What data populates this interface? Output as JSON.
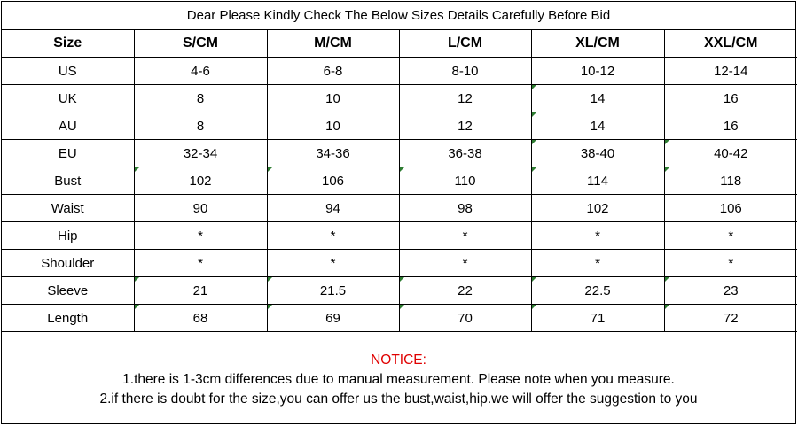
{
  "banner": "Dear Please Kindly Check The Below Sizes Details Carefully Before Bid",
  "table": {
    "headers": [
      "Size",
      "S/CM",
      "M/CM",
      "L/CM",
      "XL/CM",
      "XXL/CM"
    ],
    "rows": [
      [
        "US",
        "4-6",
        "6-8",
        "8-10",
        "10-12",
        "12-14"
      ],
      [
        "UK",
        "8",
        "10",
        "12",
        "14",
        "16"
      ],
      [
        "AU",
        "8",
        "10",
        "12",
        "14",
        "16"
      ],
      [
        "EU",
        "32-34",
        "34-36",
        "36-38",
        "38-40",
        "40-42"
      ],
      [
        "Bust",
        "102",
        "106",
        "110",
        "114",
        "118"
      ],
      [
        "Waist",
        "90",
        "94",
        "98",
        "102",
        "106"
      ],
      [
        "Hip",
        "*",
        "*",
        "*",
        "*",
        "*"
      ],
      [
        "Shoulder",
        "*",
        "*",
        "*",
        "*",
        "*"
      ],
      [
        "Sleeve",
        "21",
        "21.5",
        "22",
        "22.5",
        "23"
      ],
      [
        "Length",
        "68",
        "69",
        "70",
        "71",
        "72"
      ]
    ]
  },
  "notice": {
    "title": "NOTICE:",
    "line1": "1.there is 1-3cm differences due to manual measurement. Please note when you measure.",
    "line2": "2.if there is doubt for the size,you can offer us the bust,waist,hip.we will offer the suggestion to you"
  },
  "colors": {
    "notice_title": "#e00000",
    "cell_marker": "#2e7d32"
  }
}
